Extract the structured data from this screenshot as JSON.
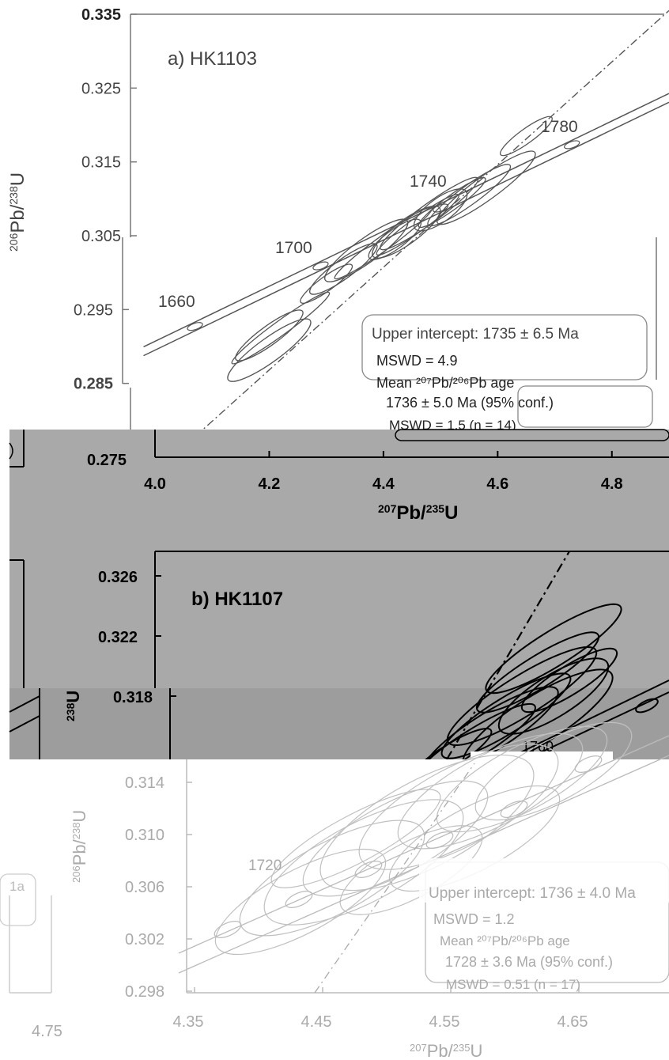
{
  "chart_data": [
    {
      "type": "scatter",
      "subtype": "concordia-diagram",
      "panel_label": "a) HK1103",
      "xlabel_parts": [
        "207",
        "Pb/",
        "235",
        "U"
      ],
      "ylabel_parts": [
        "206",
        "Pb/",
        "238",
        "U"
      ],
      "xlim": [
        4.0,
        4.9
      ],
      "ylim": [
        0.275,
        0.335
      ],
      "x_ticks": [
        "4.0",
        "4.2",
        "4.4",
        "4.6",
        "4.8"
      ],
      "y_ticks": [
        "0.275",
        "0.285",
        "0.295",
        "0.305",
        "0.315",
        "0.325",
        "0.335"
      ],
      "concordia_age_labels": [
        {
          "text": "1660",
          "x": 4.07,
          "y": 0.2938
        },
        {
          "text": "1700",
          "x": 4.29,
          "y": 0.3015
        },
        {
          "text": "1740",
          "x": 4.5,
          "y": 0.309
        },
        {
          "text": "1780",
          "x": 4.73,
          "y": 0.3175
        }
      ],
      "discordia_line": {
        "x": [
          4.0,
          4.9
        ],
        "y": [
          0.2745,
          0.3355
        ]
      },
      "error_ellipses": [
        {
          "x": 4.3,
          "y": 0.2985
        },
        {
          "x": 4.33,
          "y": 0.3005
        },
        {
          "x": 4.37,
          "y": 0.303
        },
        {
          "x": 4.4,
          "y": 0.304
        },
        {
          "x": 4.42,
          "y": 0.3045
        },
        {
          "x": 4.44,
          "y": 0.3055
        },
        {
          "x": 4.46,
          "y": 0.3065
        },
        {
          "x": 4.48,
          "y": 0.308
        },
        {
          "x": 4.5,
          "y": 0.3085
        },
        {
          "x": 4.52,
          "y": 0.3095
        },
        {
          "x": 4.55,
          "y": 0.3105
        },
        {
          "x": 4.58,
          "y": 0.3115
        },
        {
          "x": 4.65,
          "y": 0.3185
        },
        {
          "x": 4.2,
          "y": 0.2915
        },
        {
          "x": 4.2,
          "y": 0.2895
        },
        {
          "x": 4.22,
          "y": 0.2925
        }
      ],
      "annotation_lines": [
        "Upper intercept: 1735 ± 6.5 Ma",
        "MSWD = 4.9",
        "Mean ²⁰⁷Pb/²⁰⁶Pb age",
        "1736 ± 5.0 Ma (95% conf.)",
        "MSWD = 1.5 (n = 14)"
      ]
    },
    {
      "type": "scatter",
      "subtype": "concordia-diagram",
      "panel_label": "b) HK1107",
      "ylabel_fragment": "U",
      "ylim": [
        0.314,
        0.326
      ],
      "y_ticks": [
        "0.318",
        "0.322",
        "0.326"
      ],
      "concordia_age_labels": [
        {
          "text": "1760",
          "x": null,
          "y": 0.3145
        }
      ],
      "xlabel_parts": [
        "207",
        "Pb/",
        "235",
        "U"
      ],
      "x_ticks": [
        "4.0",
        "4.2",
        "4.4",
        "4.6",
        "4.8"
      ]
    },
    {
      "type": "scatter",
      "subtype": "concordia-diagram",
      "xlabel_parts": [
        "207",
        "Pb/",
        "235",
        "U"
      ],
      "ylabel_parts": [
        "206",
        "Pb/",
        "238",
        "U"
      ],
      "xlim": [
        4.35,
        4.72
      ],
      "ylim": [
        0.298,
        0.316
      ],
      "x_ticks": [
        "4.35",
        "4.45",
        "4.55",
        "4.65"
      ],
      "y_ticks": [
        "0.298",
        "0.302",
        "0.306",
        "0.310",
        "0.314"
      ],
      "concordia_age_labels": [
        {
          "text": "1720",
          "x": 4.41,
          "y": 0.3065
        }
      ],
      "annotation_lines": [
        "Upper intercept: 1736 ± 4.0 Ma",
        "MSWD = 1.2",
        "Mean ²⁰⁷Pb/²⁰⁶Pb age",
        "1728 ± 3.6 Ma (95% conf.)",
        "MSWD = 0.51 (n = 17)"
      ]
    }
  ],
  "fragments": {
    "left_tick_bottom": "4.75",
    "left_box_text": "1a"
  },
  "colors": {
    "panel_a_lines": "#555555",
    "panel_b_lines": "#000000",
    "panel_c_lines": "#b0b0b0",
    "gray_band": "#a9a9a9",
    "gray_band_dark": "#9d9d9d"
  }
}
